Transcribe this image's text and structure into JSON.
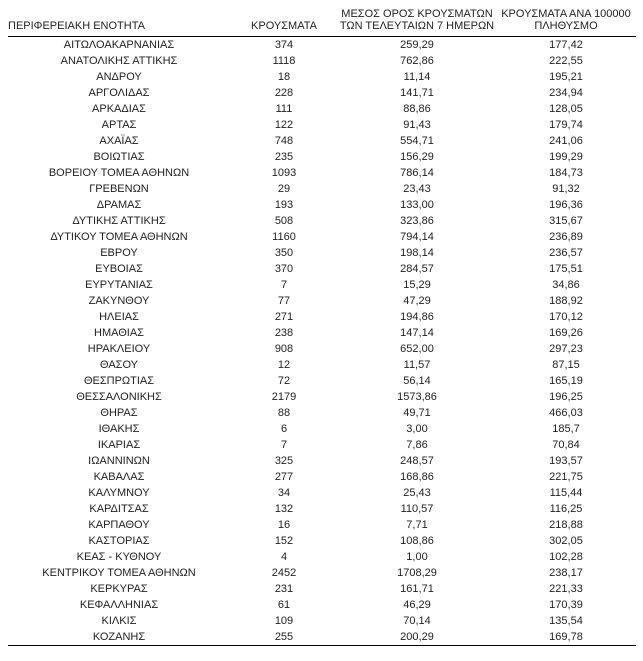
{
  "table": {
    "headers": {
      "col1": "ΠΕΡΙΦΕΡΕΙΑΚΗ ΕΝΟΤΗΤΑ",
      "col2": "ΚΡΟΥΣΜΑΤΑ",
      "col3_line1": "ΜΕΣΟΣ ΟΡΟΣ ΚΡΟΥΣΜΑΤΩΝ",
      "col3_line2": "ΤΩΝ ΤΕΛΕΥΤΑΙΩΝ 7 ΗΜΕΡΩΝ",
      "col4_line1": "ΚΡΟΥΣΜΑΤΑ ΑΝΑ 100000",
      "col4_line2": "ΠΛΗΘΥΣΜΟ"
    },
    "rows": [
      [
        "ΑΙΤΩΛΟΑΚΑΡΝΑΝΙΑΣ",
        "374",
        "259,29",
        "177,42"
      ],
      [
        "ΑΝΑΤΟΛΙΚΗΣ ΑΤΤΙΚΗΣ",
        "1118",
        "762,86",
        "222,55"
      ],
      [
        "ΑΝΔΡΟΥ",
        "18",
        "11,14",
        "195,21"
      ],
      [
        "ΑΡΓΟΛΙΔΑΣ",
        "228",
        "141,71",
        "234,94"
      ],
      [
        "ΑΡΚΑΔΙΑΣ",
        "111",
        "88,86",
        "128,05"
      ],
      [
        "ΑΡΤΑΣ",
        "122",
        "91,43",
        "179,74"
      ],
      [
        "ΑΧΑΪΑΣ",
        "748",
        "554,71",
        "241,06"
      ],
      [
        "ΒΟΙΩΤΙΑΣ",
        "235",
        "156,29",
        "199,29"
      ],
      [
        "ΒΟΡΕΙΟΥ ΤΟΜΕΑ ΑΘΗΝΩΝ",
        "1093",
        "786,14",
        "184,73"
      ],
      [
        "ΓΡΕΒΕΝΩΝ",
        "29",
        "23,43",
        "91,32"
      ],
      [
        "ΔΡΑΜΑΣ",
        "193",
        "133,00",
        "196,36"
      ],
      [
        "ΔΥΤΙΚΗΣ ΑΤΤΙΚΗΣ",
        "508",
        "323,86",
        "315,67"
      ],
      [
        "ΔΥΤΙΚΟΥ ΤΟΜΕΑ ΑΘΗΝΩΝ",
        "1160",
        "794,14",
        "236,89"
      ],
      [
        "ΕΒΡΟΥ",
        "350",
        "198,14",
        "236,57"
      ],
      [
        "ΕΥΒΟΙΑΣ",
        "370",
        "284,57",
        "175,51"
      ],
      [
        "ΕΥΡΥΤΑΝΙΑΣ",
        "7",
        "15,29",
        "34,86"
      ],
      [
        "ΖΑΚΥΝΘΟΥ",
        "77",
        "47,29",
        "188,92"
      ],
      [
        "ΗΛΕΙΑΣ",
        "271",
        "194,86",
        "170,12"
      ],
      [
        "ΗΜΑΘΙΑΣ",
        "238",
        "147,14",
        "169,26"
      ],
      [
        "ΗΡΑΚΛΕΙΟΥ",
        "908",
        "652,00",
        "297,23"
      ],
      [
        "ΘΑΣΟΥ",
        "12",
        "11,57",
        "87,15"
      ],
      [
        "ΘΕΣΠΡΩΤΙΑΣ",
        "72",
        "56,14",
        "165,19"
      ],
      [
        "ΘΕΣΣΑΛΟΝΙΚΗΣ",
        "2179",
        "1573,86",
        "196,25"
      ],
      [
        "ΘΗΡΑΣ",
        "88",
        "49,71",
        "466,03"
      ],
      [
        "ΙΘΑΚΗΣ",
        "6",
        "3,00",
        "185,7"
      ],
      [
        "ΙΚΑΡΙΑΣ",
        "7",
        "7,86",
        "70,84"
      ],
      [
        "ΙΩΑΝΝΙΝΩΝ",
        "325",
        "248,57",
        "193,57"
      ],
      [
        "ΚΑΒΑΛΑΣ",
        "277",
        "168,86",
        "221,75"
      ],
      [
        "ΚΑΛΥΜΝΟΥ",
        "34",
        "25,43",
        "115,44"
      ],
      [
        "ΚΑΡΔΙΤΣΑΣ",
        "132",
        "110,57",
        "116,25"
      ],
      [
        "ΚΑΡΠΑΘΟΥ",
        "16",
        "7,71",
        "218,88"
      ],
      [
        "ΚΑΣΤΟΡΙΑΣ",
        "152",
        "108,86",
        "302,05"
      ],
      [
        "ΚΕΑΣ - ΚΥΘΝΟΥ",
        "4",
        "1,00",
        "102,28"
      ],
      [
        "ΚΕΝΤΡΙΚΟΥ ΤΟΜΕΑ ΑΘΗΝΩΝ",
        "2452",
        "1708,29",
        "238,17"
      ],
      [
        "ΚΕΡΚΥΡΑΣ",
        "231",
        "161,71",
        "221,33"
      ],
      [
        "ΚΕΦΑΛΛΗΝΙΑΣ",
        "61",
        "46,29",
        "170,39"
      ],
      [
        "ΚΙΛΚΙΣ",
        "109",
        "70,14",
        "135,54"
      ],
      [
        "ΚΟΖΑΝΗΣ",
        "255",
        "200,29",
        "169,78"
      ]
    ]
  }
}
